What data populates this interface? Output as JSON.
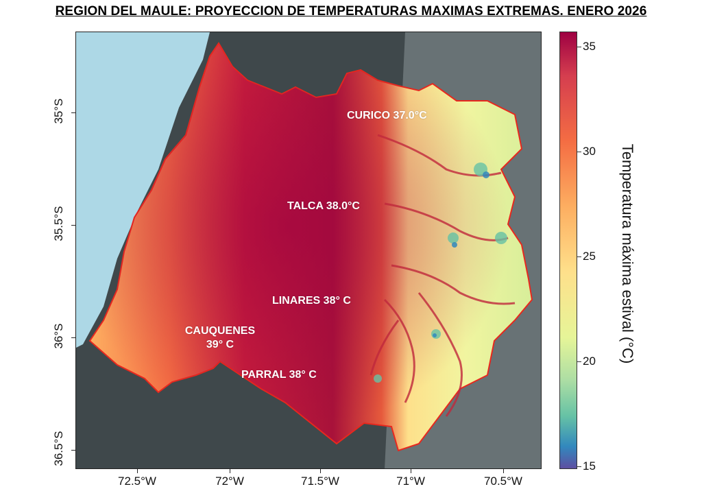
{
  "title": "REGION DEL MAULE: PROYECCION DE TEMPERATURAS MAXIMAS EXTREMAS. ENERO 2026",
  "cities": {
    "curico": "CURICO 37.0°C",
    "talca": "TALCA 38.0°C",
    "linares": "LINARES 38° C",
    "cauquenes_1": "CAUQUENES",
    "cauquenes_2": "39° C",
    "parral": "PARRAL 38° C"
  },
  "axes": {
    "y_ticks": [
      "35°S",
      "35.5°S",
      "36°S",
      "36.5°S"
    ],
    "x_ticks": [
      "72.5°W",
      "72°W",
      "71.5°W",
      "71°W",
      "70.5°W"
    ]
  },
  "colorbar": {
    "title": "Temperatura máxima estival  (°C)",
    "ticks": [
      "35",
      "30",
      "25",
      "20",
      "15"
    ],
    "range": [
      15,
      36
    ]
  },
  "colors": {
    "ocean": "#add8e6",
    "outside_region": "#3f484b",
    "boundary": "#e8281e",
    "hot": "#a3123a",
    "warm": "#f46d43",
    "cool": "#fee08b"
  }
}
